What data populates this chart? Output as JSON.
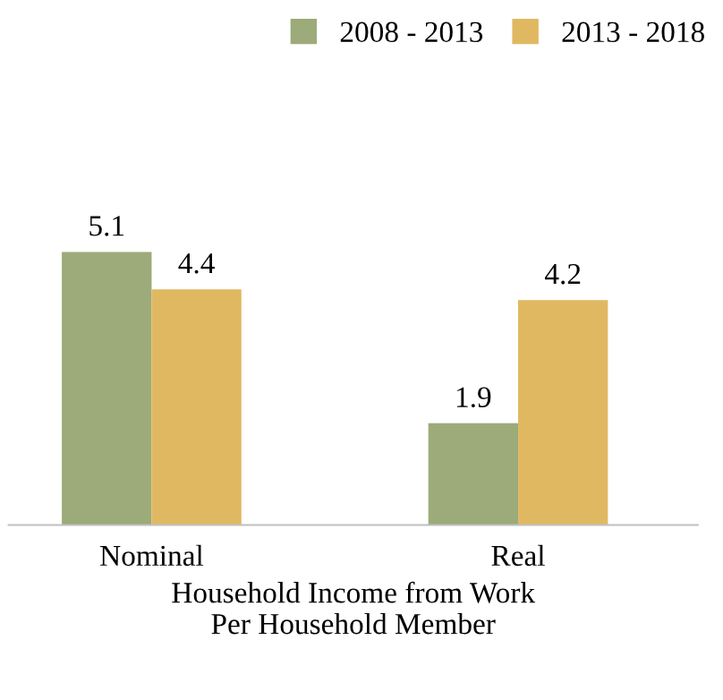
{
  "chart_data": {
    "type": "bar",
    "xlabel": "Household Income from Work\nPer Household Member",
    "categories": [
      "Nominal",
      "Real"
    ],
    "series": [
      {
        "name": "2008 - 2013",
        "color": "#9cab79",
        "values": [
          5.1,
          1.9
        ]
      },
      {
        "name": "2013 - 2018",
        "color": "#e1b862",
        "values": [
          4.4,
          4.2
        ]
      }
    ],
    "data_labels": true,
    "legend": "top right",
    "grid": false
  }
}
